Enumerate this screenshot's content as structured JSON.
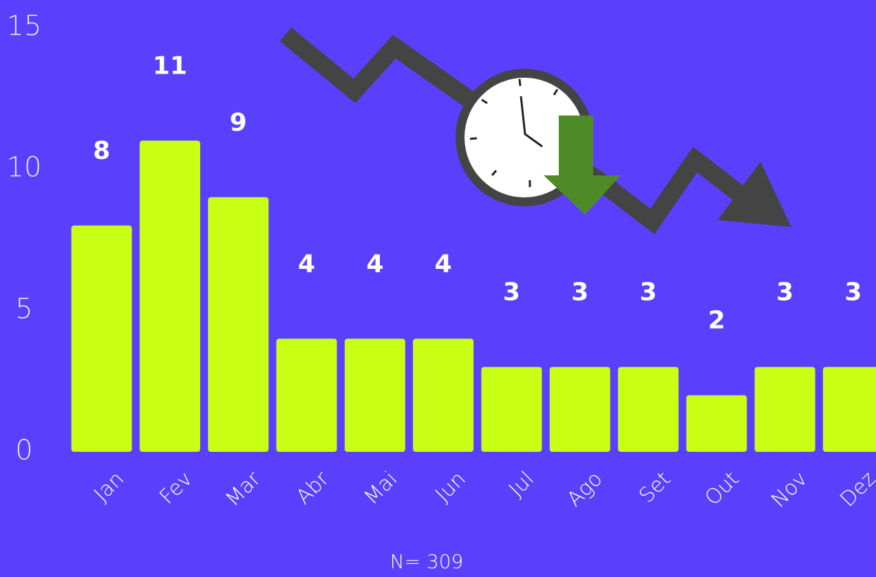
{
  "chart_data": {
    "type": "bar",
    "categories": [
      "Jan",
      "Fev",
      "Mar",
      "Abr",
      "Mai",
      "Jun",
      "Jul",
      "Ago",
      "Set",
      "Out",
      "Nov",
      "Dez"
    ],
    "values": [
      8,
      11,
      9,
      4,
      4,
      4,
      3,
      3,
      3,
      2,
      3,
      3
    ],
    "color": "#c8ff14",
    "ylim": [
      0,
      15
    ],
    "yticks": [
      0,
      5,
      10,
      15
    ],
    "grid": false,
    "note": "N= 309"
  }
}
